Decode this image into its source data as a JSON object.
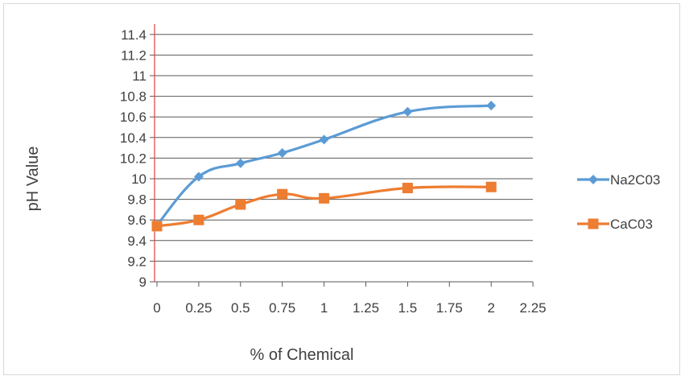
{
  "chart_data": {
    "type": "line",
    "title": "",
    "xlabel": "% of Chemical",
    "ylabel": "pH Value",
    "x_ticks": [
      "0",
      "0.25",
      "0.5",
      "0.75",
      "1",
      "1.25",
      "1.5",
      "1.75",
      "2",
      "2.25"
    ],
    "y_ticks": [
      "9",
      "9.2",
      "9.4",
      "9.6",
      "9.8",
      "10",
      "10.2",
      "10.4",
      "10.6",
      "10.8",
      "11",
      "11.2",
      "11.4"
    ],
    "xlim": [
      0,
      2.5
    ],
    "ylim": [
      9,
      11.5
    ],
    "grid": "horizontal",
    "legend_position": "right",
    "series": [
      {
        "name": "Na2C03",
        "color": "#5b9bd5",
        "marker": "diamond",
        "x": [
          0,
          0.25,
          0.5,
          0.75,
          1,
          1.5,
          2
        ],
        "y": [
          9.55,
          10.02,
          10.15,
          10.25,
          10.38,
          10.65,
          10.71
        ]
      },
      {
        "name": "CaC03",
        "color": "#ed7d31",
        "marker": "square",
        "x": [
          0,
          0.25,
          0.5,
          0.75,
          1,
          1.5,
          2
        ],
        "y": [
          9.54,
          9.6,
          9.75,
          9.85,
          9.81,
          9.91,
          9.92
        ]
      }
    ]
  }
}
